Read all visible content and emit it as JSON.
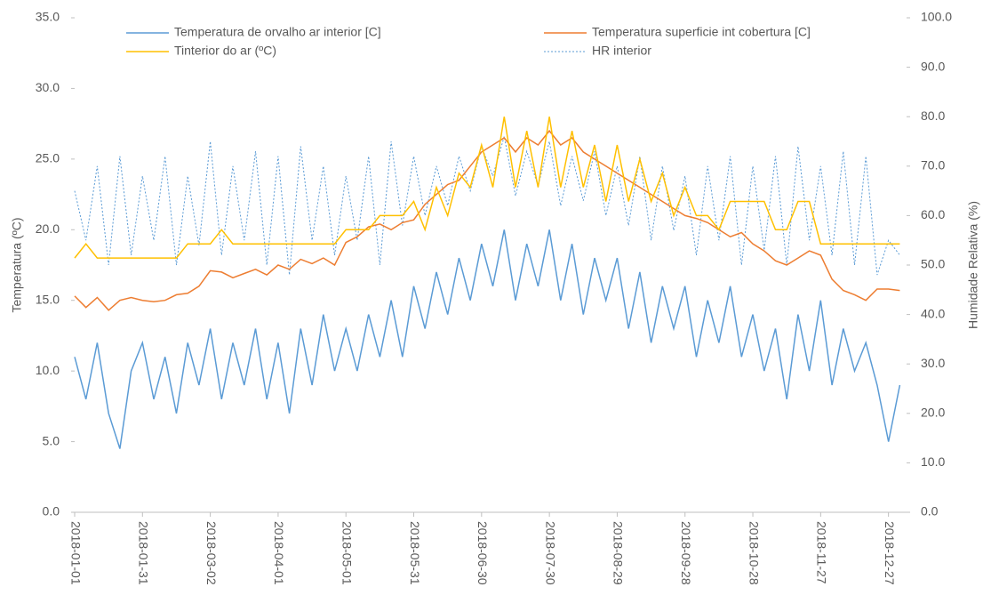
{
  "chart_data": {
    "type": "line",
    "x_label": "",
    "y_label": "Temperatura (ºC)",
    "y2_label": "Humidade Relativa (%)",
    "x": [
      "2018-01-01",
      "2018-01-06",
      "2018-01-11",
      "2018-01-16",
      "2018-01-21",
      "2018-01-26",
      "2018-01-31",
      "2018-02-05",
      "2018-02-10",
      "2018-02-15",
      "2018-02-20",
      "2018-02-25",
      "2018-03-02",
      "2018-03-07",
      "2018-03-12",
      "2018-03-17",
      "2018-03-22",
      "2018-03-27",
      "2018-04-01",
      "2018-04-06",
      "2018-04-11",
      "2018-04-16",
      "2018-04-21",
      "2018-04-26",
      "2018-05-01",
      "2018-05-06",
      "2018-05-11",
      "2018-05-16",
      "2018-05-21",
      "2018-05-26",
      "2018-05-31",
      "2018-06-05",
      "2018-06-10",
      "2018-06-15",
      "2018-06-20",
      "2018-06-25",
      "2018-06-30",
      "2018-07-05",
      "2018-07-10",
      "2018-07-15",
      "2018-07-20",
      "2018-07-25",
      "2018-07-30",
      "2018-08-04",
      "2018-08-09",
      "2018-08-14",
      "2018-08-19",
      "2018-08-24",
      "2018-08-29",
      "2018-09-03",
      "2018-09-08",
      "2018-09-13",
      "2018-09-18",
      "2018-09-23",
      "2018-09-28",
      "2018-10-03",
      "2018-10-08",
      "2018-10-13",
      "2018-10-18",
      "2018-10-23",
      "2018-10-28",
      "2018-11-02",
      "2018-11-07",
      "2018-11-12",
      "2018-11-17",
      "2018-11-22",
      "2018-11-27",
      "2018-12-02",
      "2018-12-07",
      "2018-12-12",
      "2018-12-17",
      "2018-12-22",
      "2018-12-27",
      "2019-01-01"
    ],
    "xlim": [
      "2018-01-01",
      "2019-01-04"
    ],
    "xticks": [
      "2018-01-01",
      "2018-01-31",
      "2018-03-02",
      "2018-04-01",
      "2018-05-01",
      "2018-05-31",
      "2018-06-30",
      "2018-07-30",
      "2018-08-29",
      "2018-09-28",
      "2018-10-28",
      "2018-11-27",
      "2018-12-27"
    ],
    "ylim": [
      0,
      35
    ],
    "yticks": [
      {
        "value": 0,
        "label": "0.0"
      },
      {
        "value": 5,
        "label": "5.0"
      },
      {
        "value": 10,
        "label": "10.0"
      },
      {
        "value": 15,
        "label": "15.0"
      },
      {
        "value": 20,
        "label": "20.0"
      },
      {
        "value": 25,
        "label": "25.0"
      },
      {
        "value": 30,
        "label": "30.0"
      },
      {
        "value": 35,
        "label": "35.0"
      }
    ],
    "y2lim": [
      0,
      100
    ],
    "y2ticks": [
      {
        "value": 0,
        "label": "0.0"
      },
      {
        "value": 10,
        "label": "10.0"
      },
      {
        "value": 20,
        "label": "20.0"
      },
      {
        "value": 30,
        "label": "30.0"
      },
      {
        "value": 40,
        "label": "40.0"
      },
      {
        "value": 50,
        "label": "50.0"
      },
      {
        "value": 60,
        "label": "60.0"
      },
      {
        "value": 70,
        "label": "70.0"
      },
      {
        "value": 80,
        "label": "80.0"
      },
      {
        "value": 90,
        "label": "90.0"
      },
      {
        "value": 100,
        "label": "100.0"
      }
    ],
    "series": [
      {
        "name": "Temperatura de orvalho ar interior [C]",
        "color": "#5b9bd5",
        "dash": false,
        "values": [
          11,
          8,
          12,
          7,
          4.5,
          10,
          12,
          8,
          11,
          7,
          12,
          9,
          13,
          8,
          12,
          9,
          13,
          8,
          12,
          7,
          13,
          9,
          14,
          10,
          13,
          10,
          14,
          11,
          15,
          11,
          16,
          13,
          17,
          14,
          18,
          15,
          19,
          16,
          20,
          15,
          19,
          16,
          20,
          15,
          19,
          14,
          18,
          15,
          18,
          13,
          17,
          12,
          16,
          13,
          16,
          11,
          15,
          12,
          16,
          11,
          14,
          10,
          13,
          8,
          14,
          10,
          15,
          9,
          13,
          10,
          12,
          9,
          5,
          9
        ]
      },
      {
        "name": "Temperatura superficie int cobertura [C]",
        "color": "#ed7d31",
        "dash": false,
        "values": [
          15.3,
          14.5,
          15.2,
          14.3,
          15.0,
          15.2,
          15.0,
          14.9,
          15.0,
          15.4,
          15.5,
          16.0,
          17.1,
          17.0,
          16.6,
          16.9,
          17.2,
          16.8,
          17.5,
          17.2,
          17.9,
          17.6,
          18.0,
          17.5,
          19.1,
          19.5,
          20.2,
          20.4,
          20.0,
          20.5,
          20.7,
          21.8,
          22.5,
          23.2,
          23.5,
          24.5,
          25.5,
          26.0,
          26.5,
          25.5,
          26.5,
          26.0,
          27.0,
          26.0,
          26.5,
          25.5,
          25.0,
          24.5,
          24.0,
          23.5,
          23.0,
          22.5,
          22.0,
          21.5,
          21.0,
          20.8,
          20.5,
          20.0,
          19.5,
          19.8,
          19.0,
          18.5,
          17.8,
          17.5,
          18.0,
          18.5,
          18.2,
          16.5,
          15.7,
          15.4,
          15.0,
          15.8,
          15.8,
          15.7
        ]
      },
      {
        "name": "Tinterior do ar (ºC)",
        "color": "#ffc000",
        "dash": false,
        "values": [
          18,
          19,
          18,
          18,
          18,
          18,
          18,
          18,
          18,
          18,
          19,
          19,
          19,
          20,
          19,
          19,
          19,
          19,
          19,
          19,
          19,
          19,
          19,
          19,
          20,
          20,
          20,
          21,
          21,
          21,
          22,
          20,
          23,
          21,
          24,
          23,
          26,
          23,
          28,
          23,
          27,
          23,
          28,
          23,
          27,
          23,
          26,
          22,
          26,
          22,
          25,
          22,
          24,
          21,
          23,
          21,
          21,
          20,
          22,
          22,
          22,
          22,
          20,
          20,
          22,
          22,
          19,
          19,
          19,
          19,
          19,
          19,
          19,
          19
        ]
      },
      {
        "name": "HR interior",
        "color": "#5b9bd5",
        "dash": true,
        "axis": "y2",
        "values": [
          65,
          55,
          70,
          50,
          72,
          52,
          68,
          55,
          72,
          50,
          68,
          54,
          75,
          52,
          70,
          55,
          73,
          50,
          72,
          48,
          74,
          55,
          70,
          52,
          68,
          55,
          72,
          50,
          75,
          58,
          72,
          60,
          70,
          62,
          72,
          65,
          74,
          68,
          76,
          64,
          73,
          66,
          75,
          62,
          72,
          63,
          73,
          60,
          70,
          58,
          72,
          55,
          70,
          57,
          68,
          52,
          70,
          55,
          72,
          50,
          70,
          53,
          72,
          50,
          74,
          55,
          70,
          52,
          73,
          50,
          72,
          48,
          55,
          52
        ]
      }
    ]
  }
}
